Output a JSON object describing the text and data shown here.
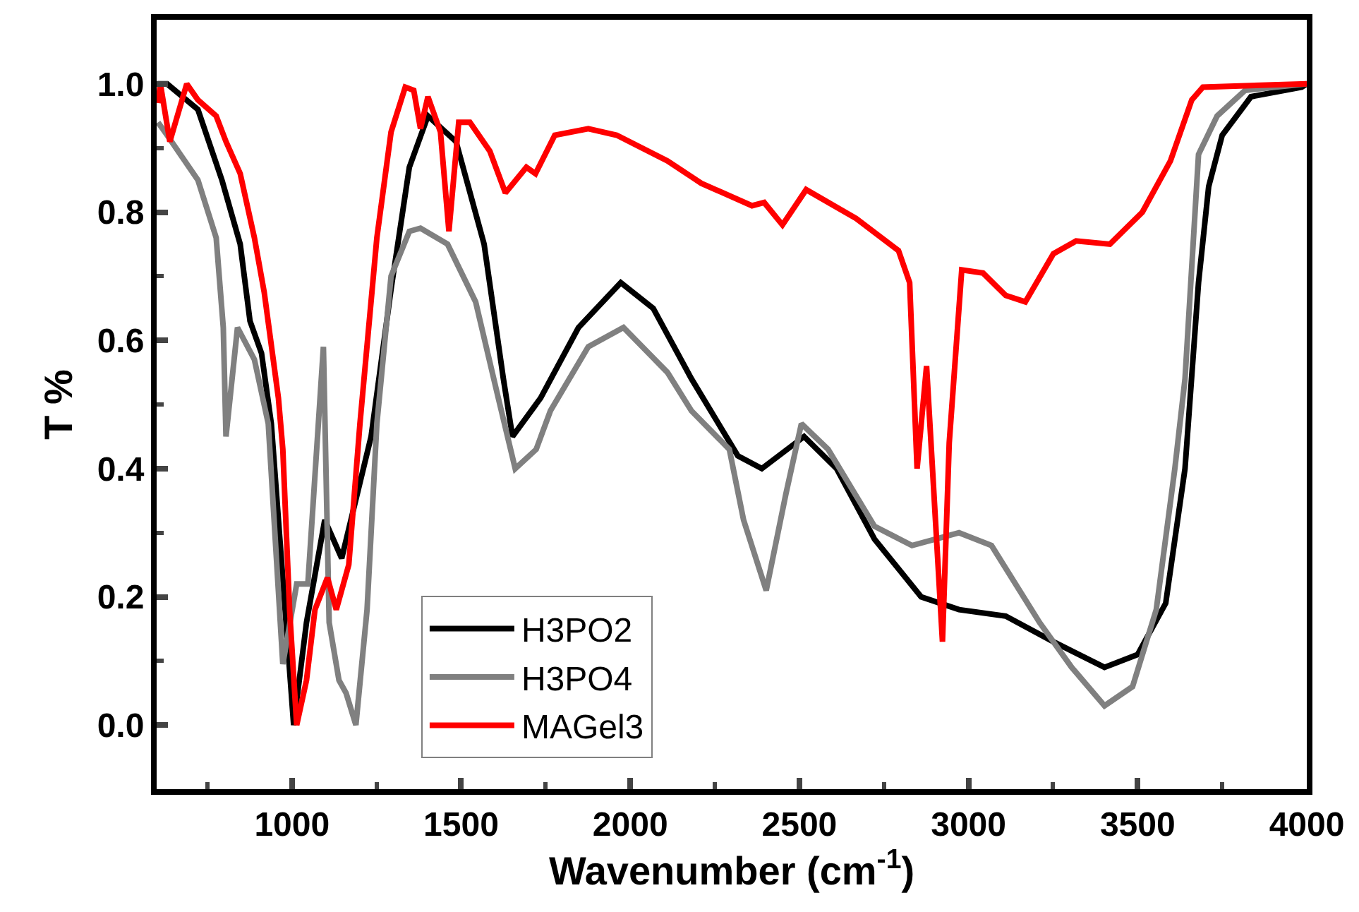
{
  "chart_data": {
    "type": "line",
    "xlabel": "Wavenumber (cm$^{-1}$)",
    "ylabel": "T %",
    "xlim": [
      600,
      4000
    ],
    "ylim": [
      -0.1,
      1.1
    ],
    "xticks": [
      1000,
      1500,
      2000,
      2500,
      3000,
      3500,
      4000
    ],
    "yticks": [
      {
        "value": 0,
        "label": "0.0"
      },
      {
        "value": 0.2,
        "label": "0.2"
      },
      {
        "value": 0.4,
        "label": "0.4"
      },
      {
        "value": 0.6,
        "label": "0.6"
      },
      {
        "value": 0.8,
        "label": "0.8"
      },
      {
        "value": 1,
        "label": "1.0"
      }
    ],
    "grid": false,
    "legend": "bottom",
    "marker": "none",
    "line_style": "solid",
    "series": [
      {
        "name": "H3PO2",
        "color": "#000000",
        "x": [
          604,
          631,
          722,
          793,
          847,
          876,
          910,
          939,
          1005,
          1043,
          1097,
          1147,
          1234,
          1293,
          1347,
          1402,
          1485,
          1568,
          1625,
          1652,
          1735,
          1847,
          1972,
          2068,
          2181,
          2318,
          2389,
          2514,
          2610,
          2722,
          2860,
          2972,
          3110,
          3251,
          3402,
          3500,
          3583,
          3640,
          3680,
          3710,
          3750,
          3835,
          3985,
          4000
        ],
        "values": [
          1.0,
          1.0,
          0.96,
          0.85,
          0.75,
          0.63,
          0.58,
          0.47,
          0.0,
          0.16,
          0.32,
          0.26,
          0.45,
          0.68,
          0.87,
          0.95,
          0.91,
          0.75,
          0.54,
          0.45,
          0.51,
          0.62,
          0.69,
          0.65,
          0.54,
          0.42,
          0.4,
          0.45,
          0.4,
          0.29,
          0.2,
          0.18,
          0.17,
          0.13,
          0.09,
          0.11,
          0.19,
          0.4,
          0.69,
          0.84,
          0.92,
          0.98,
          0.995,
          1.0
        ]
      },
      {
        "name": "H3PO4",
        "color": "#808080",
        "x": [
          604,
          631,
          722,
          776,
          797,
          805,
          839,
          889,
          930,
          973,
          1014,
          1047,
          1093,
          1110,
          1139,
          1160,
          1189,
          1222,
          1251,
          1293,
          1347,
          1380,
          1460,
          1543,
          1610,
          1660,
          1722,
          1764,
          1876,
          1980,
          2110,
          2181,
          2293,
          2335,
          2402,
          2460,
          2506,
          2585,
          2722,
          2833,
          2972,
          3068,
          3210,
          3305,
          3402,
          3485,
          3555,
          3610,
          3640,
          3680,
          3735,
          3818,
          4000
        ],
        "values": [
          0.94,
          0.92,
          0.85,
          0.76,
          0.62,
          0.45,
          0.62,
          0.57,
          0.47,
          0.095,
          0.22,
          0.22,
          0.59,
          0.16,
          0.07,
          0.05,
          0.0,
          0.18,
          0.47,
          0.7,
          0.77,
          0.775,
          0.75,
          0.66,
          0.51,
          0.4,
          0.43,
          0.49,
          0.59,
          0.62,
          0.55,
          0.49,
          0.43,
          0.32,
          0.21,
          0.36,
          0.47,
          0.43,
          0.31,
          0.28,
          0.3,
          0.28,
          0.16,
          0.09,
          0.03,
          0.06,
          0.18,
          0.4,
          0.54,
          0.89,
          0.95,
          0.99,
          1.0
        ]
      },
      {
        "name": "MAGel3",
        "color": "#ff0000",
        "x": [
          604,
          611,
          639,
          689,
          722,
          776,
          805,
          847,
          889,
          918,
          960,
          973,
          993,
          1014,
          1043,
          1068,
          1105,
          1131,
          1168,
          1201,
          1251,
          1293,
          1335,
          1360,
          1380,
          1402,
          1439,
          1464,
          1493,
          1526,
          1585,
          1631,
          1693,
          1720,
          1777,
          1876,
          1960,
          2110,
          2210,
          2360,
          2396,
          2450,
          2520,
          2668,
          2793,
          2826,
          2848,
          2876,
          2923,
          2943,
          2980,
          3043,
          3110,
          3168,
          3251,
          3318,
          3418,
          3514,
          3597,
          3660,
          3693,
          4000
        ],
        "values": [
          0.97,
          1.0,
          0.91,
          1.0,
          0.975,
          0.95,
          0.91,
          0.86,
          0.76,
          0.675,
          0.51,
          0.43,
          0.18,
          0.0,
          0.07,
          0.18,
          0.23,
          0.18,
          0.25,
          0.47,
          0.76,
          0.925,
          0.995,
          0.99,
          0.93,
          0.98,
          0.925,
          0.77,
          0.94,
          0.94,
          0.895,
          0.83,
          0.87,
          0.86,
          0.92,
          0.93,
          0.92,
          0.88,
          0.845,
          0.81,
          0.815,
          0.78,
          0.835,
          0.79,
          0.74,
          0.69,
          0.4,
          0.56,
          0.13,
          0.44,
          0.71,
          0.705,
          0.67,
          0.66,
          0.735,
          0.755,
          0.75,
          0.8,
          0.88,
          0.975,
          0.995,
          1.0
        ]
      }
    ]
  }
}
